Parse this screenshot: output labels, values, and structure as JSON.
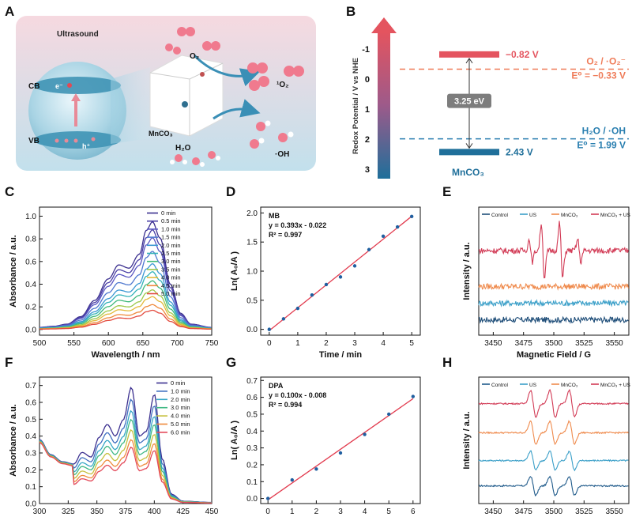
{
  "panel_labels": {
    "A": "A",
    "B": "B",
    "C": "C",
    "D": "D",
    "E": "E",
    "F": "F",
    "G": "G",
    "H": "H"
  },
  "panelA": {
    "ultrasound": "Ultrasound",
    "cb": "CB",
    "vb": "VB",
    "electron": "e⁻",
    "hole": "h⁺",
    "o2": "O₂",
    "singlet_o2": "¹O₂",
    "mnco3": "MnCO₃",
    "h2o": "H₂O",
    "oh": "·OH",
    "colors": {
      "bg_top": "#f6d9e0",
      "bg_bottom": "#c7e3ee",
      "sphere": "#8fc6da"
    }
  },
  "panelB": {
    "axis_label": "Redox Potential / V vs NHE",
    "ticks": [
      "-1",
      "0",
      "1",
      "2",
      "3"
    ],
    "cb_value": "−0.82 V",
    "vb_value": "2.43 V",
    "gap": "3.25 eV",
    "o2_couple": "O₂ / ·O₂⁻",
    "o2_e0": "E⁰ = −0.33 V",
    "oh_couple": "H₂O / ·OH",
    "oh_e0": "E⁰ = 1.99 V",
    "material": "MnCO₃",
    "levels": {
      "cb": -0.82,
      "vb": 2.43,
      "o2": -0.33,
      "oh": 1.99
    },
    "colors": {
      "cb": "#e4545f",
      "vb": "#1f6f9a",
      "o2": "#ef7b58",
      "oh": "#2a7fb0",
      "gap_box": "#7d7d7d"
    }
  },
  "chart_data": [
    {
      "panel": "C",
      "type": "line",
      "title": "",
      "xlabel": "Wavelength / nm",
      "ylabel": "Absorbance / a.u.",
      "xlim": [
        500,
        750
      ],
      "ylim": [
        -0.05,
        1.08
      ],
      "xticks": [
        500,
        550,
        600,
        650,
        700,
        750
      ],
      "yticks": [
        0.0,
        0.2,
        0.4,
        0.6,
        0.8,
        1.0
      ],
      "xtick_labels": [
        "500",
        "550",
        "600",
        "650",
        "700",
        "750"
      ],
      "ytick_labels": [
        "0.0",
        "0.2",
        "0.4",
        "0.6",
        "0.8",
        "1.0"
      ],
      "x": [
        500,
        520,
        540,
        560,
        580,
        600,
        615,
        630,
        645,
        655,
        664,
        675,
        690,
        705,
        720,
        750
      ],
      "profile": [
        0.02,
        0.03,
        0.05,
        0.12,
        0.27,
        0.47,
        0.6,
        0.57,
        0.7,
        0.92,
        1.0,
        0.85,
        0.42,
        0.15,
        0.05,
        0.02
      ],
      "series": [
        {
          "name": "0   min",
          "peak": 0.95,
          "color": "#3b2f8f"
        },
        {
          "name": "0.5 min",
          "peak": 0.88,
          "color": "#4a3fa6"
        },
        {
          "name": "1.0 min",
          "peak": 0.81,
          "color": "#5a57c2"
        },
        {
          "name": "1.5 min",
          "peak": 0.69,
          "color": "#4f78cf"
        },
        {
          "name": "2.0 min",
          "peak": 0.58,
          "color": "#3c98d3"
        },
        {
          "name": "2.5 min",
          "peak": 0.51,
          "color": "#34b3b8"
        },
        {
          "name": "3.0 min",
          "peak": 0.43,
          "color": "#3fb97a"
        },
        {
          "name": "3.5 min",
          "peak": 0.35,
          "color": "#9cc84a"
        },
        {
          "name": "4.0 min",
          "peak": 0.29,
          "color": "#e3b93a"
        },
        {
          "name": "4.5 min",
          "peak": 0.22,
          "color": "#ef8a3c"
        },
        {
          "name": "5.0 min",
          "peak": 0.17,
          "color": "#e34a3e"
        }
      ]
    },
    {
      "panel": "D",
      "type": "scatter",
      "title": "MB",
      "equation": "y = 0.393x - 0.022",
      "r2": "R² = 0.997",
      "xlabel": "Time / min",
      "ylabel": "Ln( A₀/A )",
      "xlim": [
        -0.3,
        5.3
      ],
      "ylim": [
        -0.1,
        2.1
      ],
      "xticks": [
        0,
        1,
        2,
        3,
        4,
        5
      ],
      "yticks": [
        0.0,
        0.5,
        1.0,
        1.5,
        2.0
      ],
      "xtick_labels": [
        "0",
        "1",
        "2",
        "3",
        "4",
        "5"
      ],
      "ytick_labels": [
        "0.0",
        "0.5",
        "1.0",
        "1.5",
        "2.0"
      ],
      "x": [
        0,
        0.5,
        1.0,
        1.5,
        2.0,
        2.5,
        3.0,
        3.5,
        4.0,
        4.5,
        5.0
      ],
      "y": [
        0.0,
        0.18,
        0.36,
        0.59,
        0.77,
        0.9,
        1.09,
        1.37,
        1.6,
        1.76,
        1.94
      ],
      "fit": {
        "slope": 0.393,
        "intercept": -0.022,
        "color": "#e23b4e"
      },
      "point_color": "#1f5fa0"
    },
    {
      "panel": "E",
      "type": "line",
      "title": "",
      "xlabel": "Magnetic Field / G",
      "ylabel": "Intensity / a.u.",
      "xlim": [
        3438,
        3562
      ],
      "ylim": [
        0,
        10
      ],
      "xticks": [
        3450,
        3475,
        3500,
        3525,
        3550
      ],
      "xtick_labels": [
        "3450",
        "3475",
        "3500",
        "3525",
        "3550"
      ],
      "legend": [
        "Control",
        "US",
        "MnCO₃",
        "MnCO₃ + US"
      ],
      "series": [
        {
          "name": "Control",
          "baseline": 1.2,
          "color": "#1f4e79",
          "peaks": []
        },
        {
          "name": "US",
          "baseline": 2.5,
          "color": "#3a9fc8",
          "peaks": []
        },
        {
          "name": "MnCO₃",
          "baseline": 3.8,
          "color": "#ef8a4c",
          "peaks": []
        },
        {
          "name": "MnCO₃ + US",
          "baseline": 6.6,
          "color": "#d23a55",
          "peaks": [
            {
              "center": 3481,
              "amp": 0.9
            },
            {
              "center": 3491,
              "amp": 2.2
            },
            {
              "center": 3506,
              "amp": 2.2
            },
            {
              "center": 3521,
              "amp": 0.9
            }
          ]
        }
      ]
    },
    {
      "panel": "F",
      "type": "line",
      "title": "",
      "xlabel": "Wavelength / nm",
      "ylabel": "Absorbance / a.u.",
      "xlim": [
        300,
        450
      ],
      "ylim": [
        0,
        0.75
      ],
      "xticks": [
        300,
        325,
        350,
        375,
        400,
        425,
        450
      ],
      "yticks": [
        0.0,
        0.1,
        0.2,
        0.3,
        0.4,
        0.5,
        0.6,
        0.7
      ],
      "xtick_labels": [
        "300",
        "325",
        "350",
        "375",
        "400",
        "425",
        "450"
      ],
      "ytick_labels": [
        "0.0",
        "0.1",
        "0.2",
        "0.3",
        "0.4",
        "0.5",
        "0.6",
        "0.7"
      ],
      "x": [
        300,
        310,
        320,
        330,
        337,
        345,
        352,
        359,
        366,
        373,
        380,
        387,
        393,
        400,
        407,
        415,
        425,
        450
      ],
      "profile": [
        0.55,
        0.42,
        0.36,
        0.34,
        0.44,
        0.4,
        0.57,
        0.68,
        0.58,
        0.72,
        1.0,
        0.58,
        0.62,
        0.94,
        0.38,
        0.08,
        0.02,
        0.01
      ],
      "series": [
        {
          "name": "0   min",
          "peak": 0.69,
          "color": "#3b2f8f"
        },
        {
          "name": "1.0 min",
          "peak": 0.64,
          "color": "#3f6fc0"
        },
        {
          "name": "2.0 min",
          "peak": 0.59,
          "color": "#36a7c6"
        },
        {
          "name": "3.0 min",
          "peak": 0.55,
          "color": "#3fb884"
        },
        {
          "name": "4.0 min",
          "peak": 0.5,
          "color": "#c6c03e"
        },
        {
          "name": "5.0 min",
          "peak": 0.45,
          "color": "#ef8a3c"
        },
        {
          "name": "6.0 min",
          "peak": 0.41,
          "color": "#e34a5a"
        }
      ]
    },
    {
      "panel": "G",
      "type": "scatter",
      "title": "DPA",
      "equation": "y = 0.100x - 0.008",
      "r2": "R² = 0.994",
      "xlabel": "Time / min",
      "ylabel": "Ln( A₀/A )",
      "xlim": [
        -0.3,
        6.3
      ],
      "ylim": [
        -0.03,
        0.72
      ],
      "xticks": [
        0,
        1,
        2,
        3,
        4,
        5,
        6
      ],
      "yticks": [
        0.0,
        0.1,
        0.2,
        0.3,
        0.4,
        0.5,
        0.6,
        0.7
      ],
      "xtick_labels": [
        "0",
        "1",
        "2",
        "3",
        "4",
        "5",
        "6"
      ],
      "ytick_labels": [
        "0.0",
        "0.1",
        "0.2",
        "0.3",
        "0.4",
        "0.5",
        "0.6",
        "0.7"
      ],
      "x": [
        0,
        1,
        2,
        3,
        4,
        5,
        6
      ],
      "y": [
        0.0,
        0.11,
        0.175,
        0.27,
        0.38,
        0.5,
        0.605
      ],
      "fit": {
        "slope": 0.1,
        "intercept": -0.008,
        "color": "#e23b4e"
      },
      "point_color": "#1f5fa0"
    },
    {
      "panel": "H",
      "type": "line",
      "title": "",
      "xlabel": "Magnetic Field / G",
      "ylabel": "Intensity / a.u.",
      "xlim": [
        3438,
        3562
      ],
      "ylim": [
        0,
        10
      ],
      "xticks": [
        3450,
        3475,
        3500,
        3525,
        3550
      ],
      "xtick_labels": [
        "3450",
        "3475",
        "3500",
        "3525",
        "3550"
      ],
      "legend": [
        "Control",
        "US",
        "MnCO₃",
        "MnCO₃ + US"
      ],
      "series": [
        {
          "name": "Control",
          "baseline": 1.4,
          "color": "#1f5a8a",
          "amp": 0.75
        },
        {
          "name": "US",
          "baseline": 3.4,
          "color": "#3a9fc8",
          "amp": 0.75
        },
        {
          "name": "MnCO₃",
          "baseline": 5.6,
          "color": "#ef8a4c",
          "amp": 0.9
        },
        {
          "name": "MnCO₃ + US",
          "baseline": 7.9,
          "color": "#d23a55",
          "amp": 1.05
        }
      ],
      "peak_centers": [
        3483,
        3499,
        3515
      ]
    }
  ]
}
